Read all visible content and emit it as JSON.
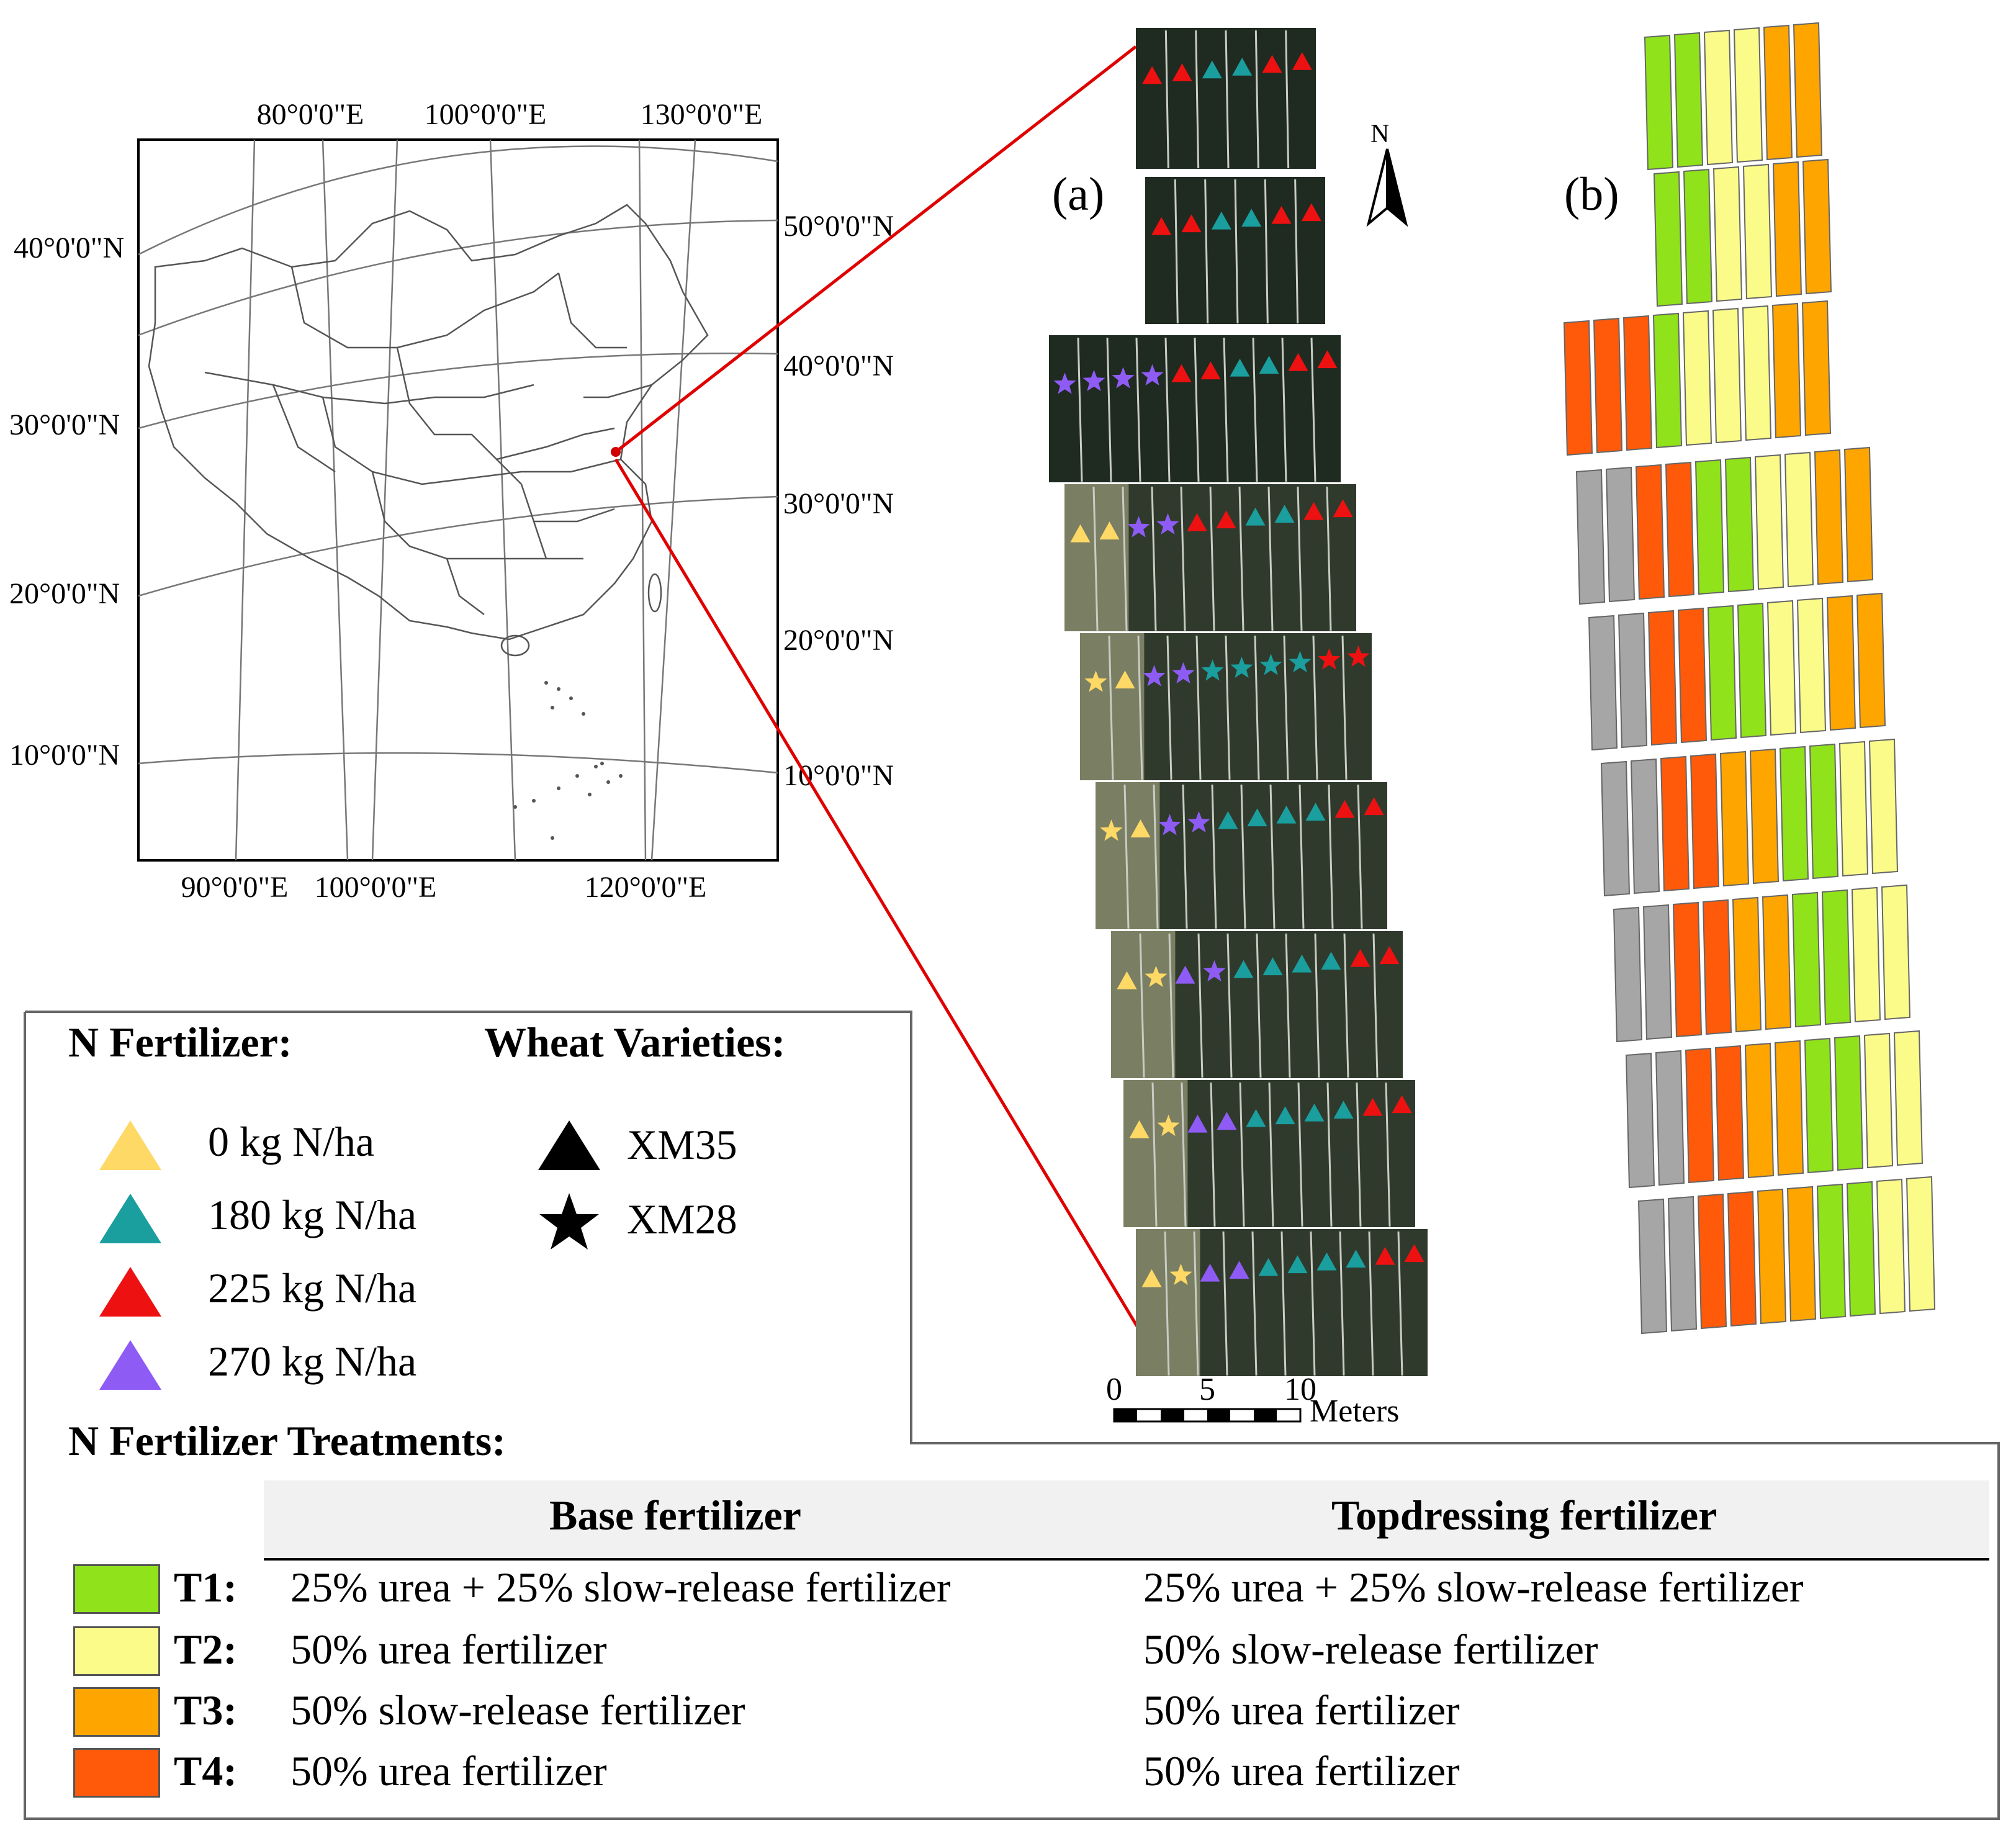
{
  "overview_map": {
    "top_lon_labels": [
      "80°0'0\"E",
      "100°0'0\"E",
      "130°0'0\"E"
    ],
    "bottom_lon_labels": [
      "90°0'0\"E",
      "100°0'0\"E",
      "120°0'0\"E"
    ],
    "left_lat_labels": [
      "40°0'0\"N",
      "30°0'0\"N",
      "20°0'0\"N",
      "10°0'0\"N"
    ],
    "right_lat_labels": [
      "50°0'0\"N",
      "40°0'0\"N",
      "30°0'0\"N",
      "20°0'0\"N",
      "10°0'0\"N"
    ]
  },
  "panel_a": {
    "label": "(a)",
    "north_label": "N",
    "scale_ticks": [
      "0",
      "5",
      "10"
    ],
    "scale_unit": "Meters"
  },
  "panel_b": {
    "label": "(b)"
  },
  "legend": {
    "n_fertilizer_title": "N Fertilizer:",
    "varieties_title": "Wheat Varieties:",
    "rates": [
      {
        "label": "0 kg N/ha",
        "color": "#ffd966"
      },
      {
        "label": "180 kg N/ha",
        "color": "#1a9e9e"
      },
      {
        "label": "225 kg N/ha",
        "color": "#ee1111"
      },
      {
        "label": "270 kg N/ha",
        "color": "#8e5cf5"
      }
    ],
    "varieties": [
      {
        "label": "XM35",
        "icon": "triangle-icon"
      },
      {
        "label": "XM28",
        "icon": "star-icon"
      }
    ],
    "treatments_title": "N Fertilizer Treatments:",
    "table_headers": [
      "Base fertilizer",
      "Topdressing fertilizer"
    ],
    "treatments": [
      {
        "code": "T1:",
        "color": "#90e21b",
        "base": "25% urea + 25% slow-release fertilizer",
        "top": "25% urea + 25% slow-release fertilizer"
      },
      {
        "code": "T2:",
        "color": "#fbfb8a",
        "base": "50% urea fertilizer",
        "top": "50% slow-release fertilizer"
      },
      {
        "code": "T3:",
        "color": "#ffa500",
        "base": "50% slow-release fertilizer",
        "top": "50% urea fertilizer"
      },
      {
        "code": "T4:",
        "color": "#ff5a0a",
        "base": "50% urea fertilizer",
        "top": "50% urea fertilizer"
      }
    ]
  }
}
